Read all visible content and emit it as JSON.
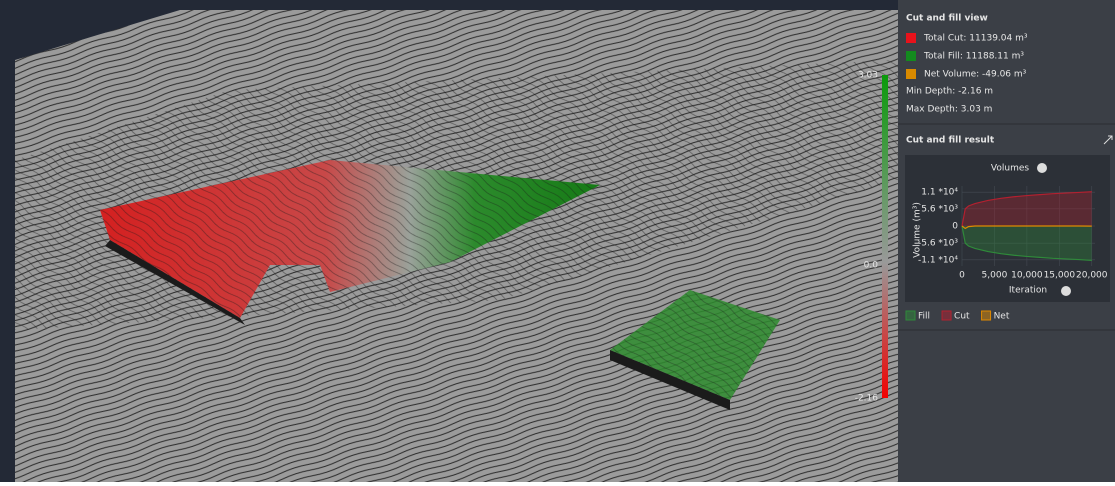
{
  "viewport": {
    "colorbar": {
      "max": "3.03",
      "mid": "0.0",
      "min": "-2.16"
    }
  },
  "panel": {
    "view": {
      "title": "Cut and fill view",
      "items": [
        {
          "label": "Total Cut: 11139.04 m³",
          "color": "#e8121b"
        },
        {
          "label": "Total Fill: 11188.11 m³",
          "color": "#138a1e"
        },
        {
          "label": "Net Volume: -49.06 m³",
          "color": "#d98a00"
        }
      ],
      "min_depth": "Min Depth: -2.16 m",
      "max_depth": "Max Depth: 3.03 m"
    },
    "result": {
      "title": "Cut and fill result"
    }
  },
  "chart_data": {
    "type": "area",
    "title": "Volumes",
    "x_label": "Iteration",
    "y_label": "Volume (m³)",
    "x": [
      0,
      500,
      1000,
      2000,
      4000,
      6000,
      8000,
      10000,
      12000,
      14000,
      16000,
      18000,
      20000
    ],
    "series": [
      {
        "name": "Fill",
        "color": "#2f8a3a",
        "values": [
          0,
          -5600,
          -6500,
          -7300,
          -8300,
          -9000,
          -9500,
          -9900,
          -10200,
          -10500,
          -10700,
          -10900,
          -11188
        ]
      },
      {
        "name": "Cut",
        "color": "#b3202f",
        "values": [
          0,
          5600,
          6500,
          7300,
          8300,
          9000,
          9500,
          9900,
          10200,
          10500,
          10700,
          10900,
          11139
        ]
      },
      {
        "name": "Net",
        "color": "#e08a00",
        "values": [
          0,
          -800,
          -200,
          0,
          0,
          0,
          0,
          0,
          0,
          0,
          0,
          0,
          -49
        ]
      }
    ],
    "xlim": [
      0,
      20500
    ],
    "xticks": [
      0,
      {
        "value": 5000,
        "label": "5,000"
      },
      {
        "value": 10000,
        "label": "10,000"
      },
      {
        "value": 15000,
        "label": "15,000"
      },
      {
        "value": 20000,
        "label": "20,000"
      }
    ],
    "ylim": [
      -13000,
      13000
    ],
    "yticks": [
      {
        "value": -11000,
        "label": "-1.1 *10⁴"
      },
      {
        "value": -5600,
        "label": "-5.6 *10³"
      },
      0,
      {
        "value": 5600,
        "label": "5.6 *10³"
      },
      {
        "value": 11000,
        "label": "1.1 *10⁴"
      }
    ]
  }
}
